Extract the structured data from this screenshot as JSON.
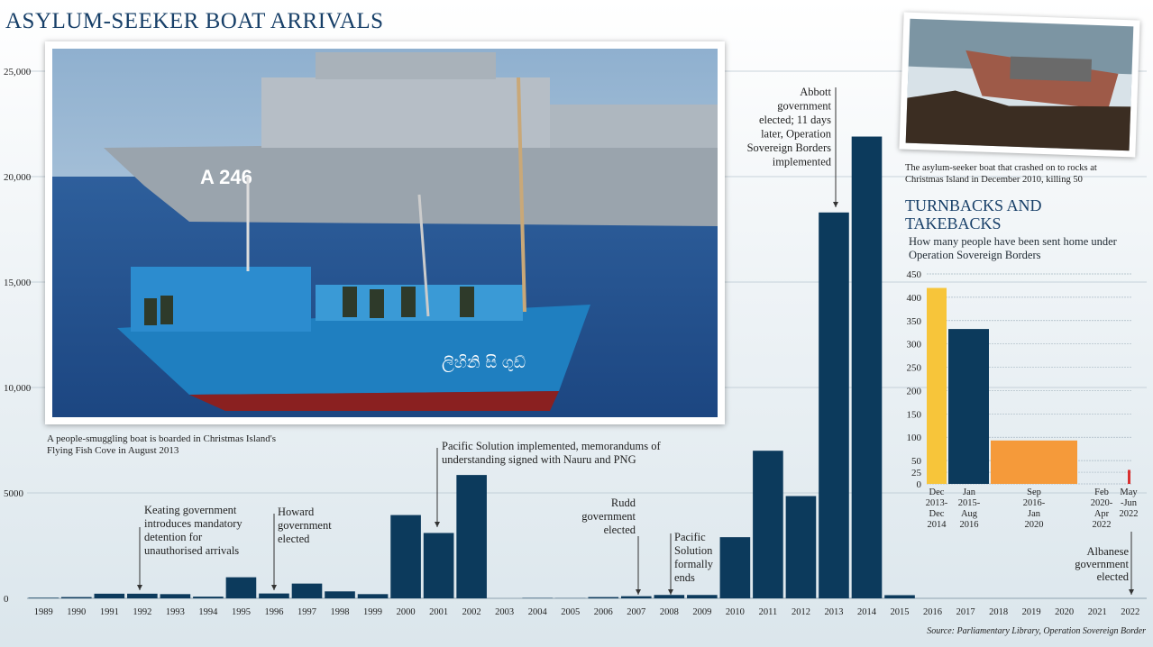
{
  "title": "ASYLUM-SEEKER BOAT ARRIVALS",
  "source": "Source: Parliamentary Library, Operation Sovereign Border",
  "photo_main": {
    "caption": "A people-smuggling boat is boarded in Christmas Island's Flying Fish Cove in August 2013",
    "ship_number": "A 246",
    "boat_name": "ලිහිනි සි ගුඩ්"
  },
  "photo_inset": {
    "caption": "The asylum-seeker boat that crashed on to rocks at Christmas Island in December 2010, killing 50"
  },
  "colors": {
    "main_bar": "#0c3a5c",
    "title": "#173f68",
    "annotation": "#222222"
  },
  "annotations": [
    {
      "id": "keating",
      "lines": [
        "Keating government",
        "introduces mandatory",
        "detention for",
        "unauthorised arrivals"
      ]
    },
    {
      "id": "howard",
      "lines": [
        "Howard",
        "government",
        "elected"
      ]
    },
    {
      "id": "pacific1",
      "lines": [
        "Pacific Solution implemented, memorandums of",
        "understanding signed with Nauru and PNG"
      ]
    },
    {
      "id": "rudd",
      "lines": [
        "Rudd",
        "government",
        "elected"
      ]
    },
    {
      "id": "pacific2",
      "lines": [
        "Pacific",
        "Solution",
        "formally",
        "ends"
      ]
    },
    {
      "id": "abbott",
      "lines": [
        "Abbott",
        "government",
        "elected; 11 days",
        "later, Operation",
        "Sovereign Borders",
        "implemented"
      ]
    },
    {
      "id": "albanese",
      "lines": [
        "Albanese",
        "government",
        "elected"
      ]
    }
  ],
  "chart_data": [
    {
      "type": "bar",
      "title": "ASYLUM-SEEKER BOAT ARRIVALS",
      "categories": [
        "1989",
        "1990",
        "1991",
        "1992",
        "1993",
        "1994",
        "1995",
        "1996",
        "1997",
        "1998",
        "1999",
        "2000",
        "2001",
        "2002",
        "2003",
        "2004",
        "2005",
        "2006",
        "2007",
        "2008",
        "2009",
        "2010",
        "2011",
        "2012",
        "2013",
        "2014",
        "2015",
        "2016",
        "2017",
        "2018",
        "2019",
        "2020",
        "2021",
        "2022"
      ],
      "values": [
        30,
        60,
        220,
        220,
        200,
        80,
        1000,
        230,
        700,
        330,
        200,
        3950,
        3100,
        5850,
        0,
        20,
        10,
        60,
        100,
        160,
        160,
        2900,
        7000,
        4850,
        18300,
        21900,
        150,
        0,
        0,
        0,
        0,
        0,
        0,
        0
      ],
      "yticks": [
        "0",
        "5000",
        "10,000",
        "15,000",
        "20,000",
        "25,000"
      ],
      "ytick_values": [
        0,
        5000,
        10000,
        15000,
        20000,
        25000
      ],
      "ylim": [
        0,
        25000
      ],
      "grid": true
    },
    {
      "type": "bar",
      "title": "TURNBACKS AND TAKEBACKS",
      "subtitle": "How many people have been sent home under Operation Sovereign Borders",
      "categories": [
        [
          "Dec",
          "2013-",
          "Dec",
          "2014"
        ],
        [
          "Jan",
          "2015-",
          "Aug",
          "2016"
        ],
        [
          "Sep",
          "2016-",
          "Jan",
          "2020"
        ],
        [
          "Feb",
          "2020-",
          "Apr",
          "2022"
        ],
        [
          "May",
          "-Jun",
          "2022"
        ]
      ],
      "values": [
        420,
        332,
        93,
        0,
        30
      ],
      "colors": [
        "#f7c53a",
        "#0c3a5c",
        "#f59a3a",
        "#c0392b",
        "#d93030"
      ],
      "yticks": [
        "0",
        "25",
        "50",
        "100",
        "150",
        "200",
        "250",
        "300",
        "350",
        "400",
        "450"
      ],
      "ytick_values": [
        0,
        25,
        50,
        100,
        150,
        200,
        250,
        300,
        350,
        400,
        450
      ],
      "ylim": [
        0,
        450
      ],
      "grid": true
    }
  ]
}
